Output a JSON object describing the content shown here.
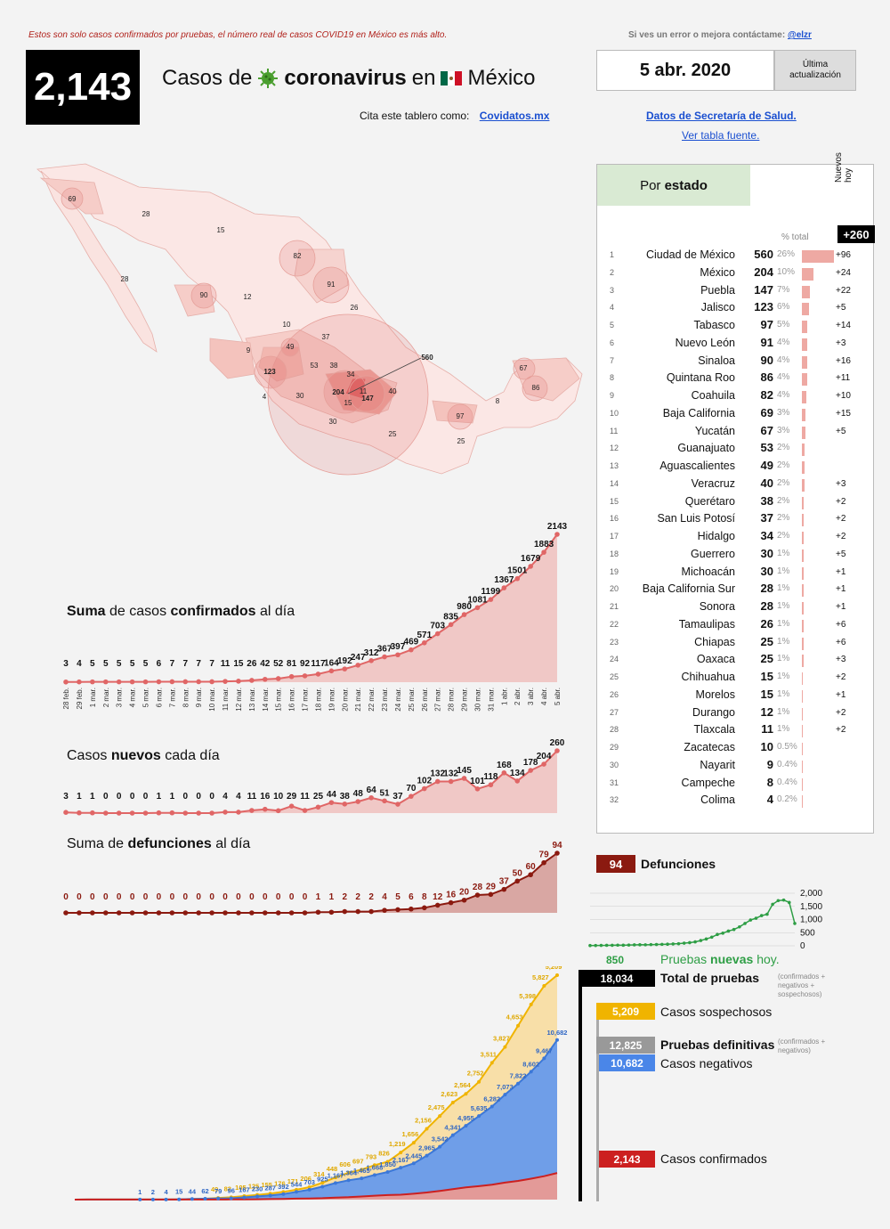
{
  "header": {
    "disclaimer": "Estos son solo casos confirmados por pruebas, el número real de casos COVID19 en México es más alto.",
    "contact_text": "Si ves un error o mejora contáctame:",
    "contact_handle": "@elzr",
    "total_cases": "2,143",
    "title_pre": "Casos de",
    "title_strong": "coronavirus",
    "title_post": "en",
    "title_country": "México",
    "date": "5 abr. 2020",
    "updated_label": "Última actualización",
    "cite_text": "Cita este tablero como:",
    "cite_link": "Covidatos.mx",
    "source_link": "Datos de Secretaría de Salud.",
    "table_link": "Ver tabla fuente.",
    "colors": {
      "accent_red": "#b0201a",
      "link_blue": "#1a4fd0",
      "flag_green": "#006847"
    }
  },
  "map": {
    "labels": [
      {
        "t": "69"
      },
      {
        "t": "28"
      },
      {
        "t": "15"
      },
      {
        "t": "28"
      },
      {
        "t": "82"
      },
      {
        "t": "90"
      },
      {
        "t": "12"
      },
      {
        "t": "91"
      },
      {
        "t": "26"
      },
      {
        "t": "10"
      },
      {
        "t": "37"
      },
      {
        "t": "9"
      },
      {
        "t": "49"
      },
      {
        "t": "123"
      },
      {
        "t": "53"
      },
      {
        "t": "38"
      },
      {
        "t": "34"
      },
      {
        "t": "560"
      },
      {
        "t": "4"
      },
      {
        "t": "30"
      },
      {
        "t": "204"
      },
      {
        "t": "11"
      },
      {
        "t": "147"
      },
      {
        "t": "40"
      },
      {
        "t": "15"
      },
      {
        "t": "30"
      },
      {
        "t": "25"
      },
      {
        "t": "67"
      },
      {
        "t": "86"
      },
      {
        "t": "8"
      },
      {
        "t": "97"
      },
      {
        "t": "25"
      }
    ]
  },
  "states": {
    "title_pre": "Por",
    "title_strong": "estado",
    "pct_header": "% total",
    "new_header": "Nuevos hoy",
    "new_total": "+260",
    "rows": [
      {
        "rank": "1",
        "name": "Ciudad de México",
        "cases": "560",
        "pct": "26%",
        "new": "+96",
        "v": 560
      },
      {
        "rank": "2",
        "name": "México",
        "cases": "204",
        "pct": "10%",
        "new": "+24",
        "v": 204
      },
      {
        "rank": "3",
        "name": "Puebla",
        "cases": "147",
        "pct": "7%",
        "new": "+22",
        "v": 147
      },
      {
        "rank": "4",
        "name": "Jalisco",
        "cases": "123",
        "pct": "6%",
        "new": "+5",
        "v": 123
      },
      {
        "rank": "5",
        "name": "Tabasco",
        "cases": "97",
        "pct": "5%",
        "new": "+14",
        "v": 97
      },
      {
        "rank": "6",
        "name": "Nuevo León",
        "cases": "91",
        "pct": "4%",
        "new": "+3",
        "v": 91
      },
      {
        "rank": "7",
        "name": "Sinaloa",
        "cases": "90",
        "pct": "4%",
        "new": "+16",
        "v": 90
      },
      {
        "rank": "8",
        "name": "Quintana Roo",
        "cases": "86",
        "pct": "4%",
        "new": "+11",
        "v": 86
      },
      {
        "rank": "9",
        "name": "Coahuila",
        "cases": "82",
        "pct": "4%",
        "new": "+10",
        "v": 82
      },
      {
        "rank": "10",
        "name": "Baja California",
        "cases": "69",
        "pct": "3%",
        "new": "+15",
        "v": 69
      },
      {
        "rank": "11",
        "name": "Yucatán",
        "cases": "67",
        "pct": "3%",
        "new": "+5",
        "v": 67
      },
      {
        "rank": "12",
        "name": "Guanajuato",
        "cases": "53",
        "pct": "2%",
        "new": "",
        "v": 53
      },
      {
        "rank": "13",
        "name": "Aguascalientes",
        "cases": "49",
        "pct": "2%",
        "new": "",
        "v": 49
      },
      {
        "rank": "14",
        "name": "Veracruz",
        "cases": "40",
        "pct": "2%",
        "new": "+3",
        "v": 40
      },
      {
        "rank": "15",
        "name": "Querétaro",
        "cases": "38",
        "pct": "2%",
        "new": "+2",
        "v": 38
      },
      {
        "rank": "16",
        "name": "San Luis Potosí",
        "cases": "37",
        "pct": "2%",
        "new": "+2",
        "v": 37
      },
      {
        "rank": "17",
        "name": "Hidalgo",
        "cases": "34",
        "pct": "2%",
        "new": "+2",
        "v": 34
      },
      {
        "rank": "18",
        "name": "Guerrero",
        "cases": "30",
        "pct": "1%",
        "new": "+5",
        "v": 30
      },
      {
        "rank": "19",
        "name": "Michoacán",
        "cases": "30",
        "pct": "1%",
        "new": "+1",
        "v": 30
      },
      {
        "rank": "20",
        "name": "Baja California Sur",
        "cases": "28",
        "pct": "1%",
        "new": "+1",
        "v": 28
      },
      {
        "rank": "21",
        "name": "Sonora",
        "cases": "28",
        "pct": "1%",
        "new": "+1",
        "v": 28
      },
      {
        "rank": "22",
        "name": "Tamaulipas",
        "cases": "26",
        "pct": "1%",
        "new": "+6",
        "v": 26
      },
      {
        "rank": "23",
        "name": "Chiapas",
        "cases": "25",
        "pct": "1%",
        "new": "+6",
        "v": 25
      },
      {
        "rank": "24",
        "name": "Oaxaca",
        "cases": "25",
        "pct": "1%",
        "new": "+3",
        "v": 25
      },
      {
        "rank": "25",
        "name": "Chihuahua",
        "cases": "15",
        "pct": "1%",
        "new": "+2",
        "v": 15
      },
      {
        "rank": "26",
        "name": "Morelos",
        "cases": "15",
        "pct": "1%",
        "new": "+1",
        "v": 15
      },
      {
        "rank": "27",
        "name": "Durango",
        "cases": "12",
        "pct": "1%",
        "new": "+2",
        "v": 12
      },
      {
        "rank": "28",
        "name": "Tlaxcala",
        "cases": "11",
        "pct": "1%",
        "new": "+2",
        "v": 11
      },
      {
        "rank": "29",
        "name": "Zacatecas",
        "cases": "10",
        "pct": "0.5%",
        "new": "",
        "v": 10
      },
      {
        "rank": "30",
        "name": "Nayarit",
        "cases": "9",
        "pct": "0.4%",
        "new": "",
        "v": 9
      },
      {
        "rank": "31",
        "name": "Campeche",
        "cases": "8",
        "pct": "0.4%",
        "new": "",
        "v": 8
      },
      {
        "rank": "32",
        "name": "Colima",
        "cases": "4",
        "pct": "0.2%",
        "new": "",
        "v": 4
      }
    ]
  },
  "chart_data": [
    {
      "type": "area",
      "id": "cumulative",
      "title_pre": "Suma",
      "title_mid": "de casos",
      "title_strong": "confirmados",
      "title_post": "al día",
      "categories": [
        "28 feb.",
        "29 feb.",
        "1 mar.",
        "2 mar.",
        "3 mar.",
        "4 mar.",
        "5 mar.",
        "6 mar.",
        "7 mar.",
        "8 mar.",
        "9 mar.",
        "10 mar.",
        "11 mar.",
        "12 mar.",
        "13 mar.",
        "14 mar.",
        "15 mar.",
        "16 mar.",
        "17 mar.",
        "18 mar.",
        "19 mar.",
        "20 mar.",
        "21 mar.",
        "22 mar.",
        "23 mar.",
        "24 mar.",
        "25 mar.",
        "26 mar.",
        "27 mar.",
        "28 mar.",
        "29 mar.",
        "30 mar.",
        "31 mar.",
        "1 abr.",
        "2 abr.",
        "3 abr.",
        "4 abr.",
        "5 abr."
      ],
      "values": [
        3,
        4,
        5,
        5,
        5,
        5,
        5,
        6,
        7,
        7,
        7,
        7,
        11,
        15,
        26,
        42,
        52,
        81,
        92,
        117,
        164,
        192,
        247,
        312,
        367,
        397,
        469,
        571,
        703,
        835,
        980,
        1081,
        1199,
        1367,
        1501,
        1679,
        1883,
        2143
      ],
      "color": "#e06666"
    },
    {
      "type": "area",
      "id": "daily",
      "title_pre": "Casos",
      "title_strong": "nuevos",
      "title_post": "cada día",
      "values": [
        3,
        1,
        1,
        0,
        0,
        0,
        0,
        1,
        1,
        0,
        0,
        0,
        4,
        4,
        11,
        16,
        10,
        29,
        11,
        25,
        44,
        38,
        48,
        64,
        51,
        37,
        70,
        102,
        132,
        132,
        145,
        101,
        118,
        168,
        134,
        178,
        204,
        260
      ],
      "color": "#e06666"
    },
    {
      "type": "area",
      "id": "deaths",
      "title_pre": "Suma de",
      "title_strong": "defunciones",
      "title_post": "al día",
      "values": [
        0,
        0,
        0,
        0,
        0,
        0,
        0,
        0,
        0,
        0,
        0,
        0,
        0,
        0,
        0,
        0,
        0,
        0,
        0,
        1,
        1,
        2,
        2,
        2,
        4,
        5,
        6,
        8,
        12,
        16,
        20,
        28,
        29,
        37,
        50,
        60,
        79,
        94
      ],
      "color": "#8b1a10"
    },
    {
      "type": "line",
      "id": "tests-sparkline",
      "yticks": [
        "2,000",
        "1,500",
        "1,000",
        "500",
        "0"
      ],
      "ylim": [
        0,
        2000
      ],
      "values": [
        10,
        12,
        15,
        18,
        20,
        25,
        22,
        30,
        35,
        40,
        38,
        45,
        50,
        55,
        60,
        70,
        80,
        100,
        120,
        150,
        200,
        260,
        330,
        430,
        480,
        560,
        620,
        720,
        850,
        980,
        1050,
        1150,
        1200,
        1580,
        1720,
        1740,
        1650,
        850
      ],
      "color": "#2e9e45"
    },
    {
      "type": "area",
      "id": "tests",
      "series": [
        {
          "name": "Casos sospechosos",
          "color": "#f0b400",
          "labels": [
            "49",
            "82",
            "105",
            "125",
            "155",
            "176",
            "171",
            "206",
            "314",
            "448",
            "606",
            "697",
            "793",
            "826",
            "1,219",
            "1,656",
            "2,156",
            "2,475",
            "2,623",
            "2,564",
            "2,752",
            "3,511",
            "3,827",
            "4,653",
            "5,398",
            "5,827",
            "5,209"
          ],
          "values": [
            49,
            82,
            105,
            125,
            155,
            176,
            171,
            206,
            314,
            448,
            606,
            697,
            793,
            826,
            1219,
            1656,
            2156,
            2475,
            2623,
            2564,
            2752,
            3511,
            3827,
            4653,
            5398,
            5827,
            5209
          ]
        },
        {
          "name": "Casos negativos",
          "color": "#4a86e8",
          "labels": [
            "1",
            "2",
            "4",
            "15",
            "44",
            "62",
            "79",
            "96",
            "167",
            "230",
            "287",
            "392",
            "544",
            "703",
            "925",
            "1,167",
            "1,364",
            "1,465",
            "1,668",
            "1,850",
            "2,167",
            "2,445",
            "2,965",
            "3,542",
            "4,341",
            "4,955",
            "5,635",
            "6,282",
            "7,073",
            "7,822",
            "8,602",
            "9,467",
            "10,682"
          ],
          "values": [
            1,
            2,
            4,
            15,
            44,
            62,
            79,
            96,
            167,
            230,
            287,
            392,
            544,
            703,
            925,
            1167,
            1364,
            1465,
            1668,
            1850,
            2167,
            2445,
            2965,
            3542,
            4341,
            4955,
            5635,
            6282,
            7073,
            7822,
            8602,
            9467,
            10682
          ]
        },
        {
          "name": "Casos confirmados",
          "color": "#cc2020",
          "values": [
            3,
            4,
            5,
            5,
            5,
            5,
            5,
            6,
            7,
            7,
            7,
            7,
            11,
            15,
            26,
            42,
            52,
            81,
            92,
            117,
            164,
            192,
            247,
            312,
            367,
            397,
            469,
            571,
            703,
            835,
            980,
            1081,
            1199,
            1367,
            1501,
            1679,
            1883,
            2143
          ]
        }
      ]
    }
  ],
  "deaths_box": {
    "value": "94",
    "label": "Defunciones"
  },
  "tests": {
    "new_value": "850",
    "new_label_pre": "Pruebas",
    "new_label_strong": "nuevas",
    "new_label_post": "hoy.",
    "total_value": "18,034",
    "total_label": "Total de pruebas",
    "total_note": "(confirmados + negativos + sospechosos)",
    "suspect_value": "5,209",
    "suspect_label": "Casos sospechosos",
    "definitive_value": "12,825",
    "definitive_label": "Pruebas definitivas",
    "definitive_note": "(confirmados + negativos)",
    "negative_value": "10,682",
    "negative_label": "Casos negativos",
    "confirmed_value": "2,143",
    "confirmed_label": "Casos confirmados"
  }
}
